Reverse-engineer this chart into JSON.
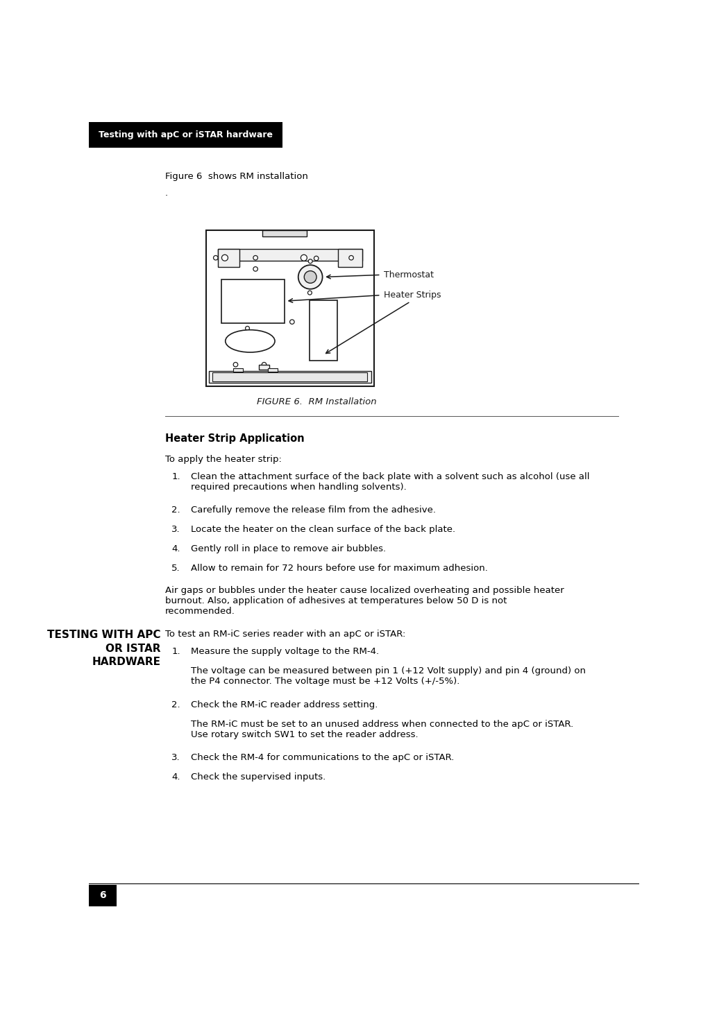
{
  "page_width": 10.23,
  "page_height": 14.68,
  "bg_color": "#ffffff",
  "header_bg": "#000000",
  "header_text": "Testing with apC or iSTAR hardware",
  "header_text_color": "#ffffff",
  "footer_page_num": "6",
  "intro_text": "Figure 6  shows RM installation",
  "figure_caption": "FIGURE 6.  RM Installation",
  "section_title": "Heater Strip Application",
  "section_intro": "To apply the heater strip:",
  "heater_steps": [
    "Clean the attachment surface of the back plate with a solvent such as alcohol (use all\nrequired precautions when handling solvents).",
    "Carefully remove the release film from the adhesive.",
    "Locate the heater on the clean surface of the back plate.",
    "Gently roll in place to remove air bubbles.",
    "Allow to remain for 72 hours before use for maximum adhesion."
  ],
  "warning_text": "Air gaps or bubbles under the heater cause localized overheating and possible heater\nburnout. Also, application of adhesives at temperatures below 50 D is not\nrecommended.",
  "side_heading": "TESTING WITH APC\nOR ISTAR\nHARDWARE",
  "testing_intro": "To test an RM-iC series reader with an apC or iSTAR:",
  "testing_steps": [
    "Measure the supply voltage to the RM-4.",
    "The voltage can be measured between pin 1 (+12 Volt supply) and pin 4 (ground) on\nthe P4 connector. The voltage must be +12 Volts (+/-5%).",
    "Check the RM-iC reader address setting.",
    "The RM-iC must be set to an unused address when connected to the apC or iSTAR.\nUse rotary switch SW1 to set the reader address.",
    "Check the RM-4 for communications to the apC or iSTAR. ",
    "Check the supervised inputs."
  ],
  "label_thermostat": "Thermostat",
  "label_heater_strips": "Heater Strips"
}
